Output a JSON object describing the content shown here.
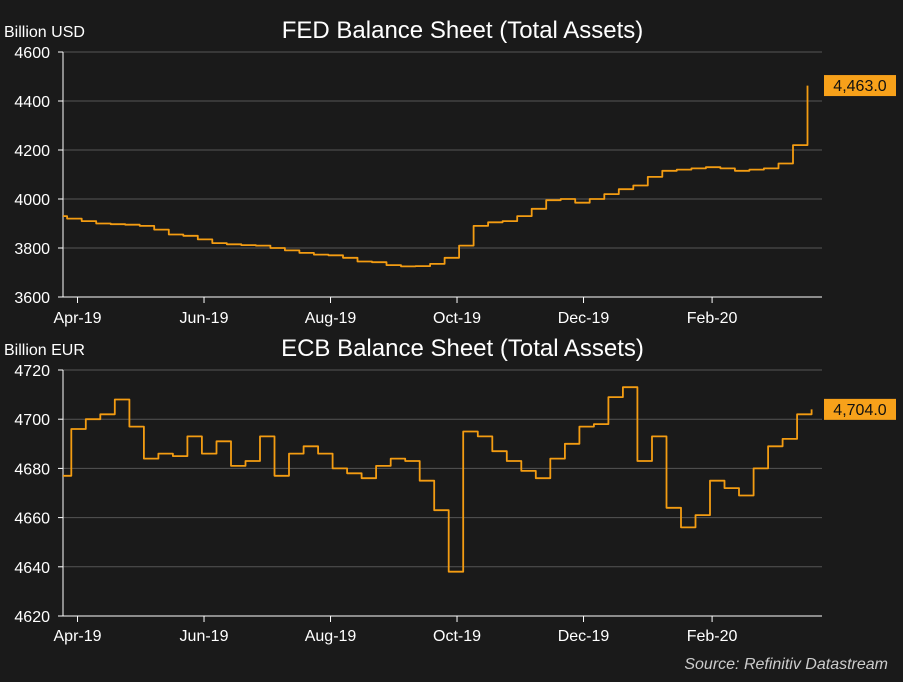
{
  "source": "Source: Refinitiv Datastream",
  "colors": {
    "background": "#1a1a1a",
    "line": "#f39c12",
    "label_bg": "#f7a11a",
    "text": "#ffffff",
    "axis": "#ffffff",
    "grid": "#555555"
  },
  "chart_data": [
    {
      "type": "line",
      "title": "FED Balance Sheet (Total Assets)",
      "unit_label": "Billion USD",
      "ylim": [
        3600,
        4600
      ],
      "yticks": [
        3600,
        3800,
        4000,
        4200,
        4400,
        4600
      ],
      "ytick_labels": [
        "3600",
        "3800",
        "4000",
        "4200",
        "4400",
        "4600"
      ],
      "x_tick_dates": [
        "2019-04-01",
        "2019-06-01",
        "2019-08-01",
        "2019-10-01",
        "2019-12-01",
        "2020-02-01"
      ],
      "x_tick_labels": [
        "Apr-19",
        "Jun-19",
        "Aug-19",
        "Oct-19",
        "Dec-19",
        "Feb-20"
      ],
      "xlim": [
        "2019-03-25",
        "2020-03-25"
      ],
      "grid": true,
      "last_value_label": "4,463.0",
      "step": true,
      "series": [
        {
          "x": [
            "2019-03-25",
            "2019-03-27",
            "2019-04-03",
            "2019-04-10",
            "2019-04-17",
            "2019-04-24",
            "2019-05-01",
            "2019-05-08",
            "2019-05-15",
            "2019-05-22",
            "2019-05-29",
            "2019-06-05",
            "2019-06-12",
            "2019-06-19",
            "2019-06-26",
            "2019-07-03",
            "2019-07-10",
            "2019-07-17",
            "2019-07-24",
            "2019-07-31",
            "2019-08-07",
            "2019-08-14",
            "2019-08-21",
            "2019-08-28",
            "2019-09-04",
            "2019-09-11",
            "2019-09-18",
            "2019-09-25",
            "2019-10-02",
            "2019-10-09",
            "2019-10-16",
            "2019-10-23",
            "2019-10-30",
            "2019-11-06",
            "2019-11-13",
            "2019-11-20",
            "2019-11-27",
            "2019-12-04",
            "2019-12-11",
            "2019-12-18",
            "2019-12-25",
            "2020-01-01",
            "2020-01-08",
            "2020-01-15",
            "2020-01-22",
            "2020-01-29",
            "2020-02-05",
            "2020-02-12",
            "2020-02-19",
            "2020-02-26",
            "2020-03-04",
            "2020-03-11",
            "2020-03-18"
          ],
          "y": [
            3930,
            3920,
            3910,
            3900,
            3897,
            3895,
            3890,
            3875,
            3855,
            3850,
            3835,
            3820,
            3815,
            3812,
            3810,
            3800,
            3790,
            3780,
            3773,
            3770,
            3760,
            3745,
            3742,
            3730,
            3725,
            3726,
            3735,
            3760,
            3810,
            3890,
            3905,
            3910,
            3930,
            3960,
            3995,
            4000,
            3985,
            4000,
            4020,
            4040,
            4055,
            4090,
            4115,
            4120,
            4125,
            4130,
            4125,
            4115,
            4120,
            4125,
            4145,
            4220,
            4463
          ]
        }
      ]
    },
    {
      "type": "line",
      "title": "ECB Balance Sheet (Total Assets)",
      "unit_label": "Billion EUR",
      "ylim": [
        4620,
        4720
      ],
      "yticks": [
        4620,
        4640,
        4660,
        4680,
        4700,
        4720
      ],
      "ytick_labels": [
        "4620",
        "4640",
        "4660",
        "4680",
        "4700",
        "4720"
      ],
      "x_tick_dates": [
        "2019-04-01",
        "2019-06-01",
        "2019-08-01",
        "2019-10-01",
        "2019-12-01",
        "2020-02-01"
      ],
      "x_tick_labels": [
        "Apr-19",
        "Jun-19",
        "Aug-19",
        "Oct-19",
        "Dec-19",
        "Feb-20"
      ],
      "xlim": [
        "2019-03-25",
        "2020-03-25"
      ],
      "grid": true,
      "last_value_label": "4,704.0",
      "step": true,
      "series": [
        {
          "x": [
            "2019-03-25",
            "2019-03-29",
            "2019-04-05",
            "2019-04-12",
            "2019-04-19",
            "2019-04-26",
            "2019-05-03",
            "2019-05-10",
            "2019-05-17",
            "2019-05-24",
            "2019-05-31",
            "2019-06-07",
            "2019-06-14",
            "2019-06-21",
            "2019-06-28",
            "2019-07-05",
            "2019-07-12",
            "2019-07-19",
            "2019-07-26",
            "2019-08-02",
            "2019-08-09",
            "2019-08-16",
            "2019-08-23",
            "2019-08-30",
            "2019-09-06",
            "2019-09-13",
            "2019-09-20",
            "2019-09-27",
            "2019-10-04",
            "2019-10-11",
            "2019-10-18",
            "2019-10-25",
            "2019-11-01",
            "2019-11-08",
            "2019-11-15",
            "2019-11-22",
            "2019-11-29",
            "2019-12-06",
            "2019-12-13",
            "2019-12-20",
            "2019-12-27",
            "2020-01-03",
            "2020-01-10",
            "2020-01-17",
            "2020-01-24",
            "2020-01-31",
            "2020-02-07",
            "2020-02-14",
            "2020-02-21",
            "2020-02-28",
            "2020-03-06",
            "2020-03-13",
            "2020-03-20"
          ],
          "y": [
            4677,
            4696,
            4700,
            4702,
            4708,
            4697,
            4684,
            4686,
            4685,
            4693,
            4686,
            4691,
            4681,
            4683,
            4693,
            4677,
            4686,
            4689,
            4686,
            4680,
            4678,
            4676,
            4681,
            4684,
            4683,
            4675,
            4663,
            4638,
            4695,
            4693,
            4687,
            4683,
            4679,
            4676,
            4684,
            4690,
            4697,
            4698,
            4709,
            4713,
            4683,
            4693,
            4664,
            4656,
            4661,
            4675,
            4672,
            4669,
            4680,
            4689,
            4692,
            4702,
            4704
          ]
        }
      ]
    }
  ]
}
